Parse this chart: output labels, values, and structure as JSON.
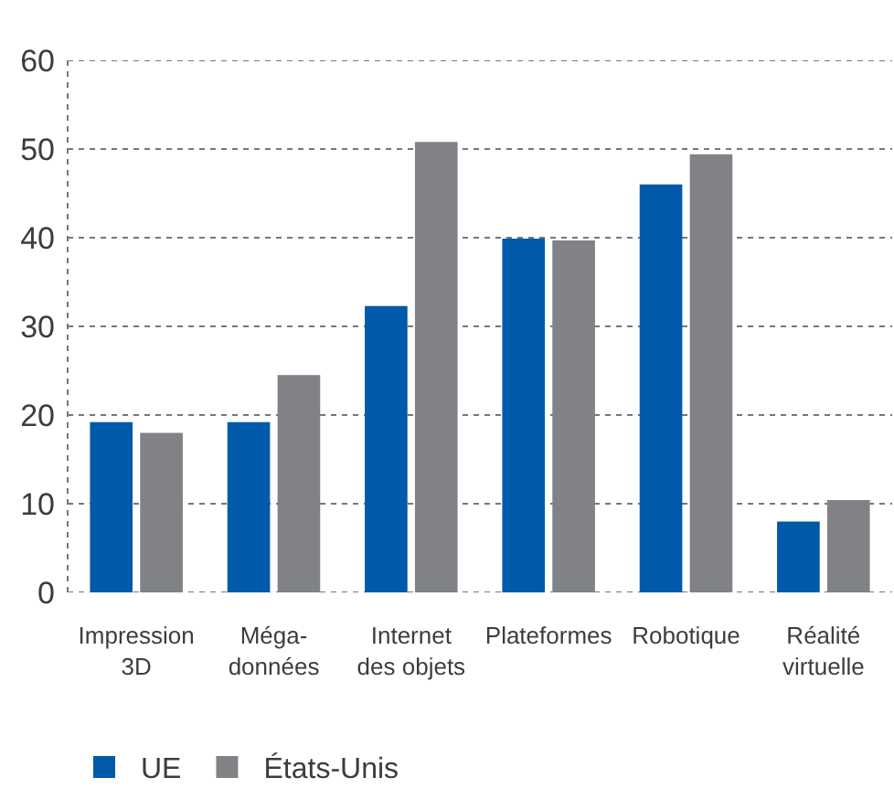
{
  "chart_data": {
    "type": "bar",
    "categories": [
      "Impression\n3D",
      "Méga-\ndonnées",
      "Internet\ndes objets",
      "Plateformes",
      "Robotique",
      "Réalité\nvirtuelle"
    ],
    "series": [
      {
        "name": "UE",
        "color": "#005aa9",
        "values": [
          19.2,
          19.2,
          32.3,
          39.9,
          46.0,
          8.0
        ]
      },
      {
        "name": "États-Unis",
        "color": "#808285",
        "values": [
          18.0,
          24.5,
          50.8,
          39.7,
          49.4,
          10.4
        ]
      }
    ],
    "ylim": [
      0,
      60
    ],
    "yticks": [
      0,
      10,
      20,
      30,
      40,
      50,
      60
    ],
    "grid": "y",
    "legend": "bottom left"
  }
}
